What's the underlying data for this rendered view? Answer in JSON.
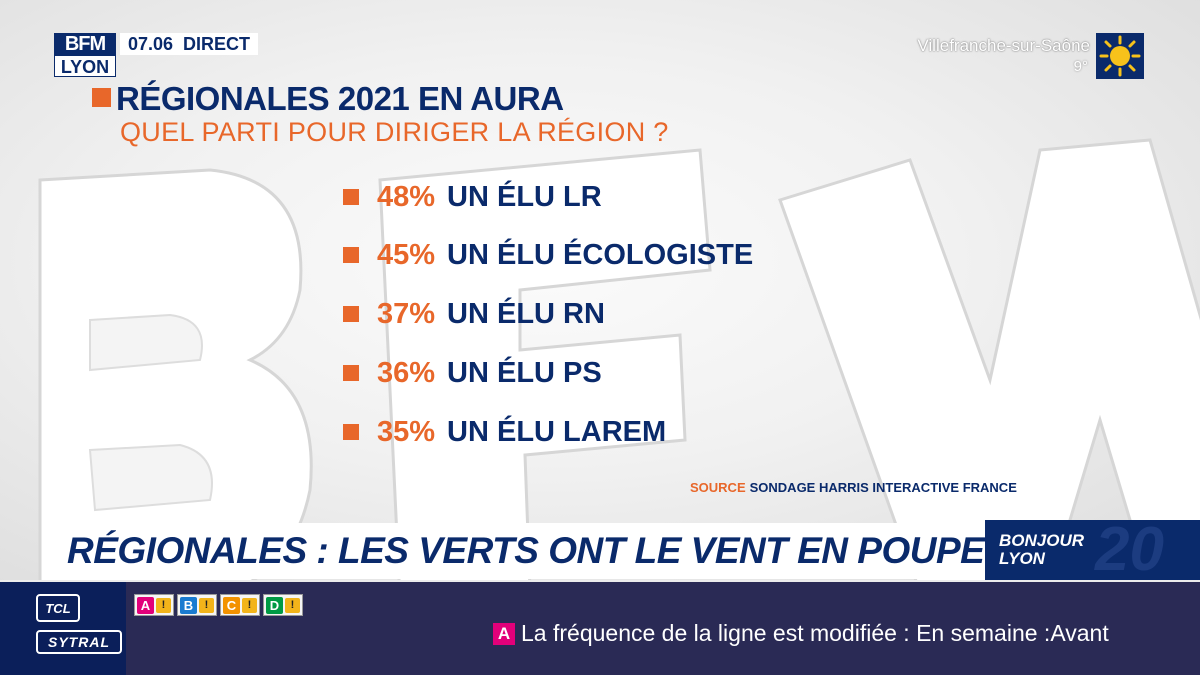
{
  "channel": {
    "logo_top": "BFM",
    "logo_city": "LYON",
    "time": "07.06",
    "live_label": "DIRECT"
  },
  "weather": {
    "city": "Villefranche-sur-Saône",
    "temperature": "9°",
    "icon": "sun-icon"
  },
  "graphic": {
    "title": "RÉGIONALES 2021 EN AURA",
    "subtitle": "QUEL PARTI POUR DIRIGER LA RÉGION ?",
    "items": [
      {
        "percent": "48%",
        "label": "UN ÉLU LR"
      },
      {
        "percent": "45%",
        "label": "UN ÉLU ÉCOLOGISTE"
      },
      {
        "percent": "37%",
        "label": "UN ÉLU RN"
      },
      {
        "percent": "36%",
        "label": "UN ÉLU PS"
      },
      {
        "percent": "35%",
        "label": "UN ÉLU LAREM"
      }
    ],
    "source_label": "SOURCE",
    "source_text": "SONDAGE HARRIS INTERACTIVE FRANCE"
  },
  "headline": "RÉGIONALES : LES VERTS ONT LE VENT EN POUPE",
  "show": {
    "name_line1": "BONJOUR",
    "name_line2": "LYON",
    "bg_text": "20"
  },
  "ticker": {
    "brand_logo": "TCL",
    "brand_name": "SYTRAL",
    "lines": [
      {
        "letter": "A",
        "color": "#e2007a",
        "alert": "!"
      },
      {
        "letter": "B",
        "color": "#1a7bd0",
        "alert": "!"
      },
      {
        "letter": "C",
        "color": "#f39200",
        "alert": "!"
      },
      {
        "letter": "D",
        "color": "#009a44",
        "alert": "!"
      }
    ],
    "badge": "A",
    "message": "La fréquence de la ligne est modifiée : En semaine :Avant"
  },
  "colors": {
    "navy": "#0a2a6b",
    "orange": "#e8672a",
    "ticker_bg": "#2a2a55"
  }
}
